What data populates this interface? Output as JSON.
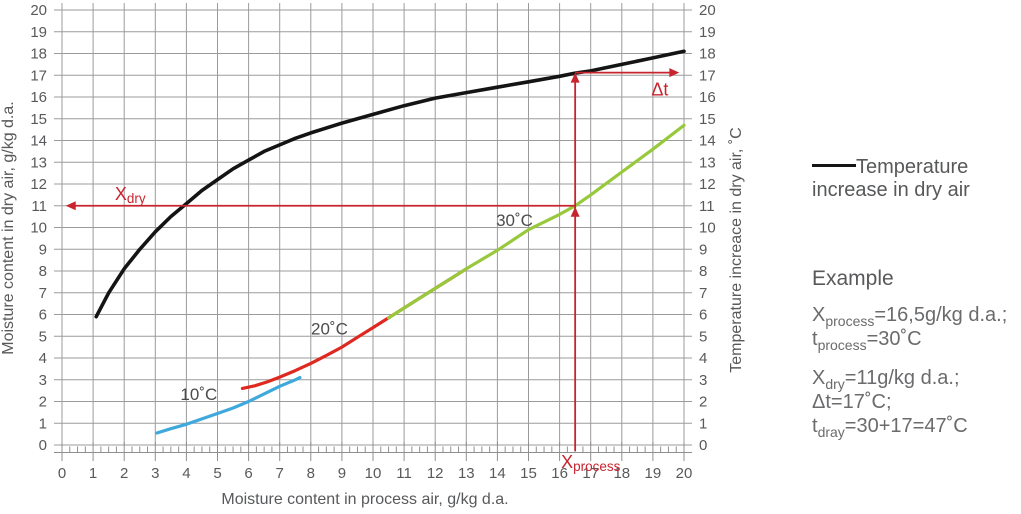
{
  "colors": {
    "grid": "#9b9b9b",
    "axis": "#8f8f8f",
    "tick_text": "#58595b",
    "axis_title": "#58595b",
    "curve_label": "#4b4c4e",
    "black_curve": "#141414",
    "blue_curve": "#3fa8dc",
    "red_curve": "#de2820",
    "green_curve": "#98c93c",
    "annotation_red": "#c8242e"
  },
  "chart_data": {
    "type": "line",
    "title": "",
    "xlabel": "Moisture content in process air, g/kg d.a.",
    "ylabel_left": "Moisture content in dry air, g/kg d.a.",
    "ylabel_right": "Temperature increace in dry air, ˚C",
    "xlim": [
      0,
      20
    ],
    "ylim": [
      0,
      20
    ],
    "x_tick_step": 1,
    "x_minor_step": 0.25,
    "y_tick_step": 1,
    "grid": true,
    "legend_position": "right",
    "series": [
      {
        "id": "curve-temperature-increase",
        "name": "Temperature increase in dry air",
        "color": "#141414",
        "width": 3.6,
        "points": [
          [
            1.1,
            5.9
          ],
          [
            1.5,
            7.0
          ],
          [
            2,
            8.1
          ],
          [
            2.5,
            9.0
          ],
          [
            3,
            9.8
          ],
          [
            3.5,
            10.5
          ],
          [
            4,
            11.1
          ],
          [
            4.5,
            11.7
          ],
          [
            5,
            12.2
          ],
          [
            5.5,
            12.7
          ],
          [
            6,
            13.1
          ],
          [
            6.5,
            13.5
          ],
          [
            7,
            13.8
          ],
          [
            7.5,
            14.1
          ],
          [
            8,
            14.35
          ],
          [
            9,
            14.8
          ],
          [
            10,
            15.2
          ],
          [
            11,
            15.6
          ],
          [
            12,
            15.95
          ],
          [
            13,
            16.2
          ],
          [
            14,
            16.45
          ],
          [
            15,
            16.7
          ],
          [
            16,
            16.95
          ],
          [
            16.5,
            17.1
          ],
          [
            17,
            17.2
          ],
          [
            18,
            17.5
          ],
          [
            19,
            17.8
          ],
          [
            20,
            18.1
          ]
        ]
      },
      {
        "id": "curve-10c",
        "name": "10˚C",
        "color": "#3fa8dc",
        "width": 3.2,
        "points": [
          [
            3.05,
            0.55
          ],
          [
            3.5,
            0.75
          ],
          [
            4,
            0.95
          ],
          [
            4.5,
            1.2
          ],
          [
            5,
            1.45
          ],
          [
            5.5,
            1.7
          ],
          [
            6,
            2.0
          ],
          [
            6.5,
            2.35
          ],
          [
            7,
            2.7
          ],
          [
            7.5,
            3.0
          ],
          [
            7.65,
            3.1
          ]
        ]
      },
      {
        "id": "curve-20c",
        "name": "20˚C",
        "color": "#de2820",
        "width": 3.2,
        "points": [
          [
            5.8,
            2.6
          ],
          [
            6.2,
            2.72
          ],
          [
            6.6,
            2.9
          ],
          [
            7,
            3.12
          ],
          [
            7.5,
            3.42
          ],
          [
            8,
            3.75
          ],
          [
            8.5,
            4.12
          ],
          [
            9,
            4.5
          ],
          [
            9.5,
            4.95
          ],
          [
            10,
            5.4
          ],
          [
            10.5,
            5.85
          ],
          [
            11,
            6.3
          ],
          [
            11.5,
            6.75
          ],
          [
            12,
            7.2
          ],
          [
            12.5,
            7.65
          ],
          [
            13,
            8.1
          ]
        ]
      },
      {
        "id": "curve-30c",
        "name": "30˚C",
        "color": "#98c93c",
        "width": 3.2,
        "points": [
          [
            10.5,
            5.84
          ],
          [
            11,
            6.3
          ],
          [
            12,
            7.2
          ],
          [
            13,
            8.1
          ],
          [
            14,
            8.95
          ],
          [
            15,
            9.9
          ],
          [
            16,
            10.6
          ],
          [
            16.5,
            11.0
          ],
          [
            17,
            11.5
          ],
          [
            18,
            12.55
          ],
          [
            19,
            13.6
          ],
          [
            20,
            14.7
          ]
        ]
      }
    ],
    "curve_labels": [
      {
        "text": "10˚C",
        "x": 4.4,
        "y": 2.35
      },
      {
        "text": "20˚C",
        "x": 8.6,
        "y": 5.35
      },
      {
        "text": "30˚C",
        "x": 14.55,
        "y": 10.35
      }
    ],
    "annotations": {
      "color": "#c8242e",
      "xdry": {
        "base": "X",
        "sub": "dry",
        "y": 11,
        "x_arrow": 0.12,
        "x_to": 16.5,
        "label_x": 1.7,
        "label_y_offset": 6
      },
      "xprocess": {
        "base": "X",
        "sub": "process",
        "x": 16.5,
        "y_top": 17.12,
        "label_x": 16.05
      },
      "dt": {
        "text": "Δt",
        "y": 17.12,
        "x_to": 19.85,
        "label_x": 19.5,
        "label_y": 16.3
      }
    }
  },
  "legend": {
    "swatch_color": "#141414",
    "line1": "Temperature",
    "line2": "increase in dry air"
  },
  "example": {
    "heading": "Example",
    "block1": [
      {
        "base": "X",
        "sub": "process",
        "rest": "=16,5g/kg d.a.;"
      },
      {
        "base": "t",
        "sub": "process",
        "rest": "=30˚C"
      }
    ],
    "block2": [
      {
        "base": "X",
        "sub": "dry",
        "rest": "=11g/kg d.a.;"
      },
      {
        "base": "Δt",
        "sub": "",
        "rest": "=17˚C;"
      },
      {
        "base": "t",
        "sub": "dray",
        "rest": "=30+17=47˚C"
      }
    ]
  }
}
